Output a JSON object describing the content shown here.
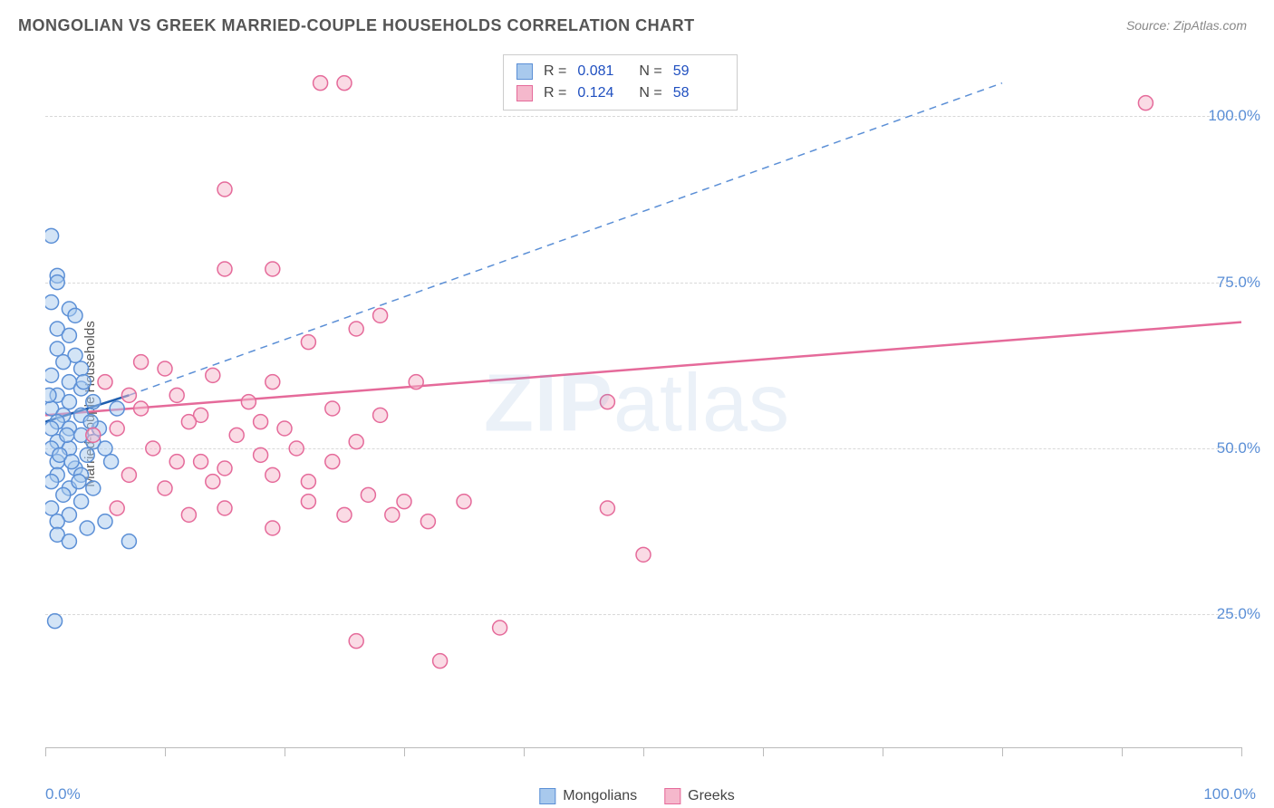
{
  "title": "MONGOLIAN VS GREEK MARRIED-COUPLE HOUSEHOLDS CORRELATION CHART",
  "source": "Source: ZipAtlas.com",
  "watermark": {
    "bold": "ZIP",
    "rest": "atlas"
  },
  "y_axis_label": "Married-couple Households",
  "chart": {
    "type": "scatter",
    "xlim": [
      0,
      100
    ],
    "ylim": [
      5,
      110
    ],
    "x_ticks": [
      0,
      100
    ],
    "x_tick_labels": [
      "0.0%",
      "100.0%"
    ],
    "x_minor_ticks": [
      10,
      20,
      30,
      40,
      50,
      60,
      70,
      80,
      90
    ],
    "y_gridlines": [
      25,
      50,
      75,
      100
    ],
    "y_tick_labels": [
      "25.0%",
      "50.0%",
      "75.0%",
      "100.0%"
    ],
    "background_color": "#ffffff",
    "grid_color": "#d8d8d8",
    "marker_radius": 8,
    "marker_stroke_width": 1.5,
    "trend_line_width": 2.5
  },
  "series": [
    {
      "name": "Mongolians",
      "fill": "#a8c9ed",
      "stroke": "#5b8fd6",
      "fill_opacity": 0.5,
      "R": "0.081",
      "N": "59",
      "trend_solid": {
        "x1": 0,
        "y1": 54,
        "x2": 7,
        "y2": 58,
        "color": "#1f5fb0"
      },
      "trend_dashed": {
        "x1": 7,
        "y1": 58,
        "x2": 80,
        "y2": 105,
        "color": "#5b8fd6"
      },
      "points": [
        [
          0.5,
          82
        ],
        [
          1,
          76
        ],
        [
          1,
          75
        ],
        [
          0.5,
          72
        ],
        [
          2,
          71
        ],
        [
          2.5,
          70
        ],
        [
          1,
          68
        ],
        [
          2,
          67
        ],
        [
          1,
          65
        ],
        [
          2.5,
          64
        ],
        [
          1.5,
          63
        ],
        [
          3,
          62
        ],
        [
          0.5,
          61
        ],
        [
          2,
          60
        ],
        [
          3,
          59
        ],
        [
          1,
          58
        ],
        [
          2,
          57
        ],
        [
          4,
          57
        ],
        [
          0.5,
          56
        ],
        [
          1.5,
          55
        ],
        [
          3,
          55
        ],
        [
          1,
          54
        ],
        [
          2,
          53
        ],
        [
          0.5,
          53
        ],
        [
          3,
          52
        ],
        [
          1,
          51
        ],
        [
          4,
          51
        ],
        [
          0.5,
          50
        ],
        [
          2,
          50
        ],
        [
          3.5,
          49
        ],
        [
          1,
          48
        ],
        [
          2.5,
          47
        ],
        [
          1,
          46
        ],
        [
          3,
          46
        ],
        [
          0.5,
          45
        ],
        [
          2,
          44
        ],
        [
          4,
          44
        ],
        [
          1.5,
          43
        ],
        [
          3,
          42
        ],
        [
          0.5,
          41
        ],
        [
          2,
          40
        ],
        [
          5,
          50
        ],
        [
          1,
          39
        ],
        [
          3.5,
          38
        ],
        [
          5,
          39
        ],
        [
          7,
          36
        ],
        [
          1,
          37
        ],
        [
          2,
          36
        ],
        [
          0.8,
          24
        ],
        [
          4.5,
          53
        ],
        [
          6,
          56
        ],
        [
          5.5,
          48
        ],
        [
          3.2,
          60
        ],
        [
          2.8,
          45
        ],
        [
          1.2,
          49
        ],
        [
          0.3,
          58
        ],
        [
          1.8,
          52
        ],
        [
          2.2,
          48
        ],
        [
          3.8,
          54
        ]
      ]
    },
    {
      "name": "Greeks",
      "fill": "#f5b8cc",
      "stroke": "#e56a9a",
      "fill_opacity": 0.5,
      "R": "0.124",
      "N": "58",
      "trend_solid": {
        "x1": 0,
        "y1": 55,
        "x2": 100,
        "y2": 69,
        "color": "#e56a9a"
      },
      "points": [
        [
          92,
          102
        ],
        [
          23,
          105
        ],
        [
          25,
          105
        ],
        [
          15,
          89
        ],
        [
          15,
          77
        ],
        [
          19,
          77
        ],
        [
          28,
          70
        ],
        [
          26,
          68
        ],
        [
          22,
          66
        ],
        [
          10,
          62
        ],
        [
          19,
          60
        ],
        [
          24,
          56
        ],
        [
          31,
          60
        ],
        [
          47,
          57
        ],
        [
          13,
          55
        ],
        [
          18,
          54
        ],
        [
          21,
          50
        ],
        [
          26,
          51
        ],
        [
          11,
          48
        ],
        [
          15,
          47
        ],
        [
          19,
          46
        ],
        [
          14,
          45
        ],
        [
          22,
          45
        ],
        [
          27,
          43
        ],
        [
          22,
          42
        ],
        [
          30,
          42
        ],
        [
          35,
          42
        ],
        [
          25,
          40
        ],
        [
          29,
          40
        ],
        [
          32,
          39
        ],
        [
          47,
          41
        ],
        [
          50,
          34
        ],
        [
          38,
          23
        ],
        [
          33,
          18
        ],
        [
          26,
          21
        ],
        [
          19,
          38
        ],
        [
          8,
          56
        ],
        [
          6,
          53
        ],
        [
          5,
          60
        ],
        [
          7,
          58
        ],
        [
          4,
          52
        ],
        [
          9,
          50
        ],
        [
          12,
          54
        ],
        [
          16,
          52
        ],
        [
          11,
          58
        ],
        [
          14,
          61
        ],
        [
          10,
          44
        ],
        [
          17,
          57
        ],
        [
          7,
          46
        ],
        [
          8,
          63
        ],
        [
          6,
          41
        ],
        [
          13,
          48
        ],
        [
          20,
          53
        ],
        [
          24,
          48
        ],
        [
          28,
          55
        ],
        [
          18,
          49
        ],
        [
          15,
          41
        ],
        [
          12,
          40
        ]
      ]
    }
  ],
  "legend_top_labels": {
    "r": "R =",
    "n": "N ="
  },
  "legend_bottom": [
    {
      "label": "Mongolians",
      "fill": "#a8c9ed",
      "stroke": "#5b8fd6"
    },
    {
      "label": "Greeks",
      "fill": "#f5b8cc",
      "stroke": "#e56a9a"
    }
  ]
}
